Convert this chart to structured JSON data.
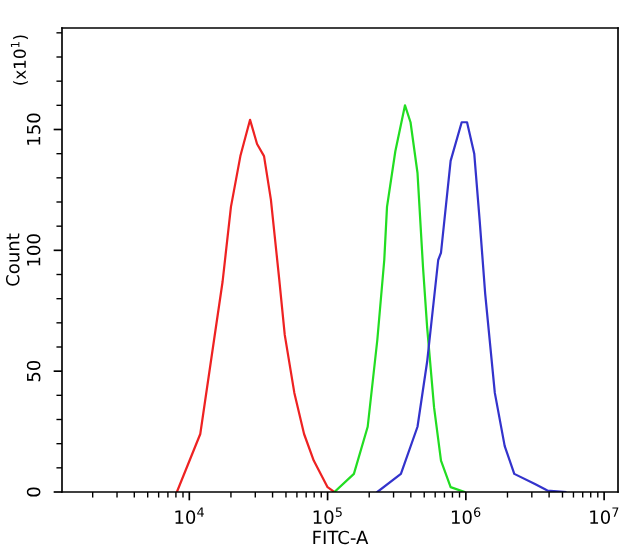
{
  "chart_data": {
    "type": "line",
    "xlabel": "FITC-A",
    "ylabel": "Count",
    "annotations": [
      "(x10$^{1}$)"
    ],
    "log": "x",
    "grid": false,
    "legend": false,
    "marker": "none",
    "line_style": "solid",
    "xlim": [
      1200,
      12600000
    ],
    "ylim": [
      0,
      192
    ],
    "xticks": [
      {
        "value": 10000,
        "label": "10$^{4}$"
      },
      {
        "value": 100000,
        "label": "10$^{5}$"
      },
      {
        "value": 1000000,
        "label": "10$^{6}$"
      },
      {
        "value": 10000000,
        "label": "10$^{7}$"
      }
    ],
    "yticks": [
      0,
      50,
      100,
      150
    ],
    "series": [
      {
        "color": "#ee2222",
        "x": [
          8130,
          12000,
          15100,
          17400,
          20000,
          23400,
          27500,
          30900,
          34700,
          38900,
          44700,
          49000,
          57500,
          67600,
          79400,
          100000,
          112000
        ],
        "values": [
          0,
          24,
          63,
          87,
          118,
          139,
          154,
          144,
          139,
          121,
          88,
          65,
          41,
          24,
          13,
          2,
          0
        ]
      },
      {
        "color": "#22dd22",
        "x": [
          112000,
          155000,
          195000,
          229000,
          257000,
          269000,
          309000,
          363000,
          398000,
          447000,
          490000,
          525000,
          589000,
          661000,
          776000,
          977000
        ],
        "values": [
          0,
          7.5,
          27,
          63,
          96,
          118,
          141,
          160,
          153,
          132,
          93,
          68,
          35,
          13,
          2,
          0
        ]
      },
      {
        "color": "#3333cc",
        "x": [
          229000,
          339000,
          447000,
          525000,
          631000,
          661000,
          776000,
          933000,
          1020000,
          1150000,
          1260000,
          1380000,
          1620000,
          1910000,
          2240000,
          3160000,
          3890000,
          5250000
        ],
        "values": [
          0,
          7.5,
          27,
          54,
          96,
          99,
          137,
          153,
          153,
          140,
          112,
          82,
          41,
          19,
          7.5,
          3.3,
          0.6,
          0
        ]
      }
    ]
  }
}
